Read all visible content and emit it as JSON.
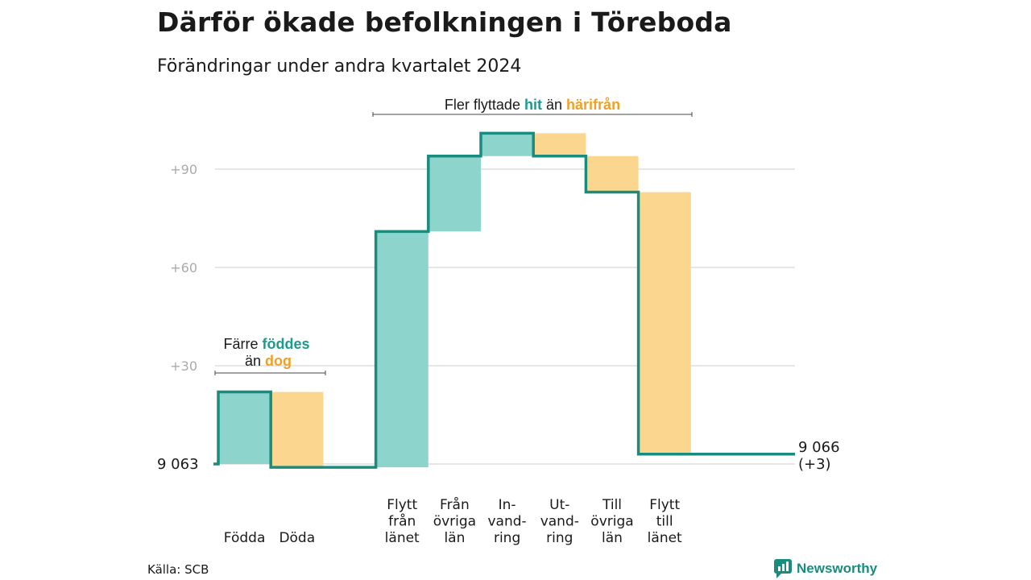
{
  "title": "Därför ökade befolkningen i Töreboda",
  "subtitle": "Förändringar under andra kvartalet 2024",
  "source": "Källa: SCB",
  "brand": "Newsworthy",
  "colors": {
    "inflow": "#8dd5cc",
    "outflow": "#fad68f",
    "line": "#1a8c7e",
    "inflow_text": "#1a9b8c",
    "outflow_text": "#f0a025",
    "grid": "#dddddd"
  },
  "annotations": {
    "top": {
      "pre": "Fler flyttade",
      "hi1": "hit",
      "mid": "än",
      "hi2": "härifrån"
    },
    "left": {
      "line1_pre": "Färre",
      "line1_hi": "föddes",
      "line2_pre": "än",
      "line2_hi": "dog"
    }
  },
  "chart_data": {
    "type": "waterfall",
    "title": "Därför ökade befolkningen i Töreboda",
    "subtitle": "Förändringar under andra kvartalet 2024",
    "y_ticks": [
      {
        "value": 30,
        "label": "+30"
      },
      {
        "value": 60,
        "label": "+60"
      },
      {
        "value": 90,
        "label": "+90"
      }
    ],
    "ylim": [
      0,
      100
    ],
    "grid": true,
    "start": {
      "value": 0,
      "label": "9  063"
    },
    "end": {
      "value": 3,
      "label_line1": "9 066",
      "label_line2": "(+3)"
    },
    "steps": [
      {
        "label": [
          "Födda"
        ],
        "change": 22,
        "kind": "inflow"
      },
      {
        "label": [
          "Döda"
        ],
        "change": -23,
        "kind": "outflow"
      },
      {
        "label": [
          ""
        ],
        "change": 0,
        "kind": "none"
      },
      {
        "label": [
          "Flytt",
          "från",
          "länet"
        ],
        "change": 72,
        "kind": "inflow"
      },
      {
        "label": [
          "Från",
          "övriga",
          "län"
        ],
        "change": 23,
        "kind": "inflow"
      },
      {
        "label": [
          "In-",
          "vand-",
          "ring"
        ],
        "change": 7,
        "kind": "inflow"
      },
      {
        "label": [
          "Ut-",
          "vand-",
          "ring"
        ],
        "change": -7,
        "kind": "outflow"
      },
      {
        "label": [
          "Till",
          "övriga",
          "län"
        ],
        "change": -11,
        "kind": "outflow"
      },
      {
        "label": [
          "Flytt",
          "till",
          "länet"
        ],
        "change": -80,
        "kind": "outflow"
      }
    ]
  }
}
